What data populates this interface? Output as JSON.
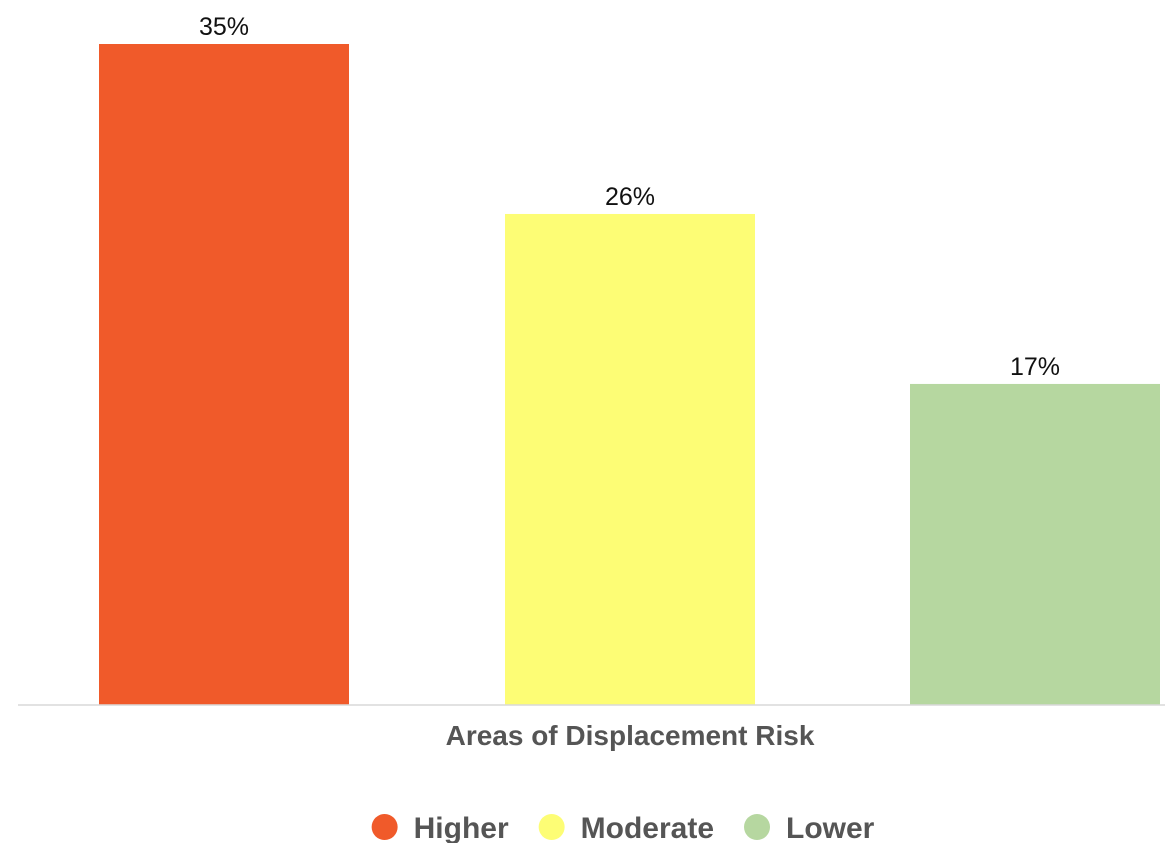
{
  "chart_data": {
    "type": "bar",
    "categories": [
      "Higher",
      "Moderate",
      "Lower"
    ],
    "series": [
      {
        "name": "",
        "values": [
          35,
          26,
          17
        ],
        "colors": [
          "#F05A2A",
          "#FDFD75",
          "#B6D7A0"
        ]
      }
    ],
    "value_labels": [
      "35%",
      "26%",
      "17%"
    ],
    "title": "",
    "xlabel": "Areas of Displacement Risk",
    "ylabel": "",
    "ylim": [
      0,
      35
    ],
    "grid": false,
    "legend": {
      "position": "bottom",
      "items": [
        {
          "label": "Higher",
          "color": "#F05A2A"
        },
        {
          "label": "Moderate",
          "color": "#FDFD75"
        },
        {
          "label": "Lower",
          "color": "#B6D7A0"
        }
      ]
    }
  }
}
